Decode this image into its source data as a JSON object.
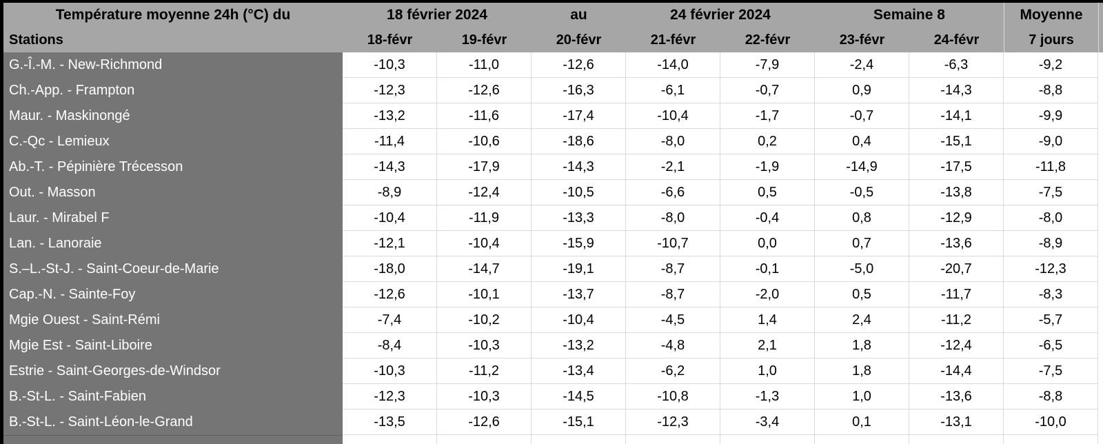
{
  "table": {
    "title": "Température moyenne 24h (°C) du",
    "period_start": "18 février 2024",
    "period_connector": "au",
    "period_end": "24 février 2024",
    "week_label": "Semaine 8",
    "average_title": "Moyenne",
    "average_subtitle": "7 jours",
    "stations_header": "Stations",
    "day_headers": [
      "18-févr",
      "19-févr",
      "20-févr",
      "21-févr",
      "22-févr",
      "23-févr",
      "24-févr"
    ],
    "rows": [
      {
        "station": "G.-Î.-M. - New-Richmond",
        "values": [
          "-10,3",
          "-11,0",
          "-12,6",
          "-14,0",
          "-7,9",
          "-2,4",
          "-6,3",
          "-9,2"
        ]
      },
      {
        "station": "Ch.-App. - Frampton",
        "values": [
          "-12,3",
          "-12,6",
          "-16,3",
          "-6,1",
          "-0,7",
          "0,9",
          "-14,3",
          "-8,8"
        ]
      },
      {
        "station": "Maur. - Maskinongé",
        "values": [
          "-13,2",
          "-11,6",
          "-17,4",
          "-10,4",
          "-1,7",
          "-0,7",
          "-14,1",
          "-9,9"
        ]
      },
      {
        "station": "C.-Qc - Lemieux",
        "values": [
          "-11,4",
          "-10,6",
          "-18,6",
          "-8,0",
          "0,2",
          "0,4",
          "-15,1",
          "-9,0"
        ]
      },
      {
        "station": "Ab.-T. - Pépinière Trécesson",
        "values": [
          "-14,3",
          "-17,9",
          "-14,3",
          "-2,1",
          "-1,9",
          "-14,9",
          "-17,5",
          "-11,8"
        ]
      },
      {
        "station": "Out. - Masson",
        "values": [
          "-8,9",
          "-12,4",
          "-10,5",
          "-6,6",
          "0,5",
          "-0,5",
          "-13,8",
          "-7,5"
        ]
      },
      {
        "station": "Laur. - Mirabel F",
        "values": [
          "-10,4",
          "-11,9",
          "-13,3",
          "-8,0",
          "-0,4",
          "0,8",
          "-12,9",
          "-8,0"
        ]
      },
      {
        "station": "Lan. - Lanoraie",
        "values": [
          "-12,1",
          "-10,4",
          "-15,9",
          "-10,7",
          "0,0",
          "0,7",
          "-13,6",
          "-8,9"
        ]
      },
      {
        "station": "S.–L.-St-J. - Saint-Coeur-de-Marie",
        "values": [
          "-18,0",
          "-14,7",
          "-19,1",
          "-8,7",
          "-0,1",
          "-5,0",
          "-20,7",
          "-12,3"
        ]
      },
      {
        "station": "Cap.-N. - Sainte-Foy",
        "values": [
          "-12,6",
          "-10,1",
          "-13,7",
          "-8,7",
          "-2,0",
          "0,5",
          "-11,7",
          "-8,3"
        ]
      },
      {
        "station": "Mgie Ouest - Saint-Rémi",
        "values": [
          "-7,4",
          "-10,2",
          "-10,4",
          "-4,5",
          "1,4",
          "2,4",
          "-11,2",
          "-5,7"
        ]
      },
      {
        "station": "Mgie Est - Saint-Liboire",
        "values": [
          "-8,4",
          "-10,3",
          "-13,2",
          "-4,8",
          "2,1",
          "1,8",
          "-12,4",
          "-6,5"
        ]
      },
      {
        "station": "Estrie - Saint-Georges-de-Windsor",
        "values": [
          "-10,3",
          "-11,2",
          "-13,4",
          "-6,2",
          "1,0",
          "1,8",
          "-14,4",
          "-7,5"
        ]
      },
      {
        "station": "B.-St-L. - Saint-Fabien",
        "values": [
          "-12,3",
          "-10,3",
          "-14,5",
          "-10,8",
          "-1,3",
          "1,0",
          "-13,6",
          "-8,8"
        ]
      },
      {
        "station": "B.-St-L. - Saint-Léon-le-Grand",
        "values": [
          "-13,5",
          "-12,6",
          "-15,1",
          "-12,3",
          "-3,4",
          "0,1",
          "-13,1",
          "-10,0"
        ]
      }
    ]
  },
  "colors": {
    "header_bg": "#a6a6a6",
    "station_bg": "#757575",
    "cell_bg": "#ffffff",
    "grid_line": "#d9d9d9",
    "page_bg": "#000000"
  },
  "chart_data": {
    "type": "table",
    "title": "Température moyenne 24h (°C) du 18 février 2024 au 24 février 2024 — Semaine 8",
    "columns": [
      "Stations",
      "18-févr",
      "19-févr",
      "20-févr",
      "21-févr",
      "22-févr",
      "23-févr",
      "24-févr",
      "Moyenne 7 jours"
    ],
    "rows": [
      [
        "G.-Î.-M. - New-Richmond",
        -10.3,
        -11.0,
        -12.6,
        -14.0,
        -7.9,
        -2.4,
        -6.3,
        -9.2
      ],
      [
        "Ch.-App. - Frampton",
        -12.3,
        -12.6,
        -16.3,
        -6.1,
        -0.7,
        0.9,
        -14.3,
        -8.8
      ],
      [
        "Maur. - Maskinongé",
        -13.2,
        -11.6,
        -17.4,
        -10.4,
        -1.7,
        -0.7,
        -14.1,
        -9.9
      ],
      [
        "C.-Qc - Lemieux",
        -11.4,
        -10.6,
        -18.6,
        -8.0,
        0.2,
        0.4,
        -15.1,
        -9.0
      ],
      [
        "Ab.-T. - Pépinière Trécesson",
        -14.3,
        -17.9,
        -14.3,
        -2.1,
        -1.9,
        -14.9,
        -17.5,
        -11.8
      ],
      [
        "Out. - Masson",
        -8.9,
        -12.4,
        -10.5,
        -6.6,
        0.5,
        -0.5,
        -13.8,
        -7.5
      ],
      [
        "Laur. - Mirabel F",
        -10.4,
        -11.9,
        -13.3,
        -8.0,
        -0.4,
        0.8,
        -12.9,
        -8.0
      ],
      [
        "Lan. - Lanoraie",
        -12.1,
        -10.4,
        -15.9,
        -10.7,
        0.0,
        0.7,
        -13.6,
        -8.9
      ],
      [
        "S.–L.-St-J. - Saint-Coeur-de-Marie",
        -18.0,
        -14.7,
        -19.1,
        -8.7,
        -0.1,
        -5.0,
        -20.7,
        -12.3
      ],
      [
        "Cap.-N. - Sainte-Foy",
        -12.6,
        -10.1,
        -13.7,
        -8.7,
        -2.0,
        0.5,
        -11.7,
        -8.3
      ],
      [
        "Mgie Ouest - Saint-Rémi",
        -7.4,
        -10.2,
        -10.4,
        -4.5,
        1.4,
        2.4,
        -11.2,
        -5.7
      ],
      [
        "Mgie Est - Saint-Liboire",
        -8.4,
        -10.3,
        -13.2,
        -4.8,
        2.1,
        1.8,
        -12.4,
        -6.5
      ],
      [
        "Estrie - Saint-Georges-de-Windsor",
        -10.3,
        -11.2,
        -13.4,
        -6.2,
        1.0,
        1.8,
        -14.4,
        -7.5
      ],
      [
        "B.-St-L. - Saint-Fabien",
        -12.3,
        -10.3,
        -14.5,
        -10.8,
        -1.3,
        1.0,
        -13.6,
        -8.8
      ],
      [
        "B.-St-L. - Saint-Léon-le-Grand",
        -13.5,
        -12.6,
        -15.1,
        -12.3,
        -3.4,
        0.1,
        -13.1,
        -10.0
      ]
    ]
  }
}
